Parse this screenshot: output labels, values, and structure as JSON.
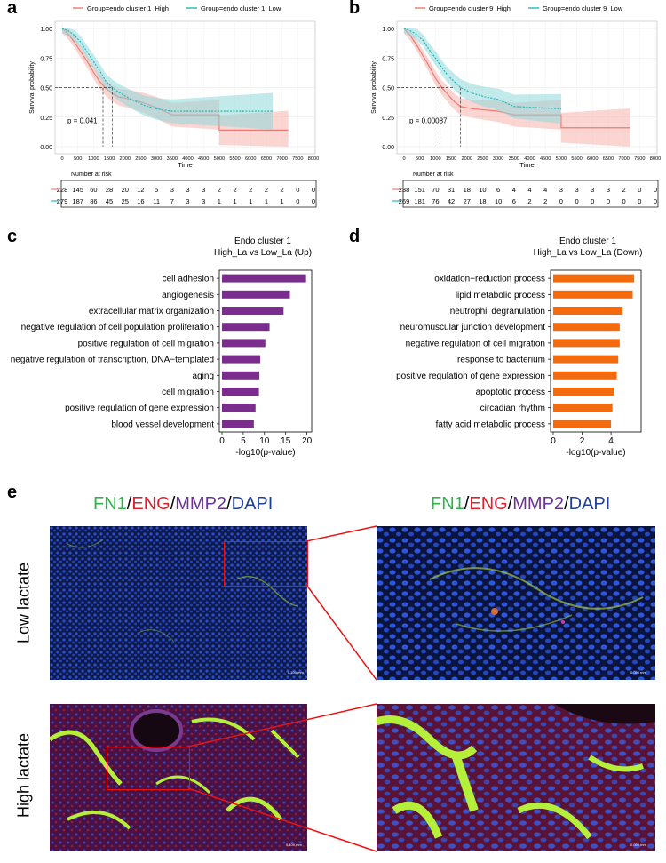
{
  "panels": {
    "a": "a",
    "b": "b",
    "c": "c",
    "d": "d",
    "e": "e"
  },
  "km": [
    {
      "id": "a",
      "legend": [
        {
          "label": "Group=endo cluster 1_High",
          "color": "#f07b72"
        },
        {
          "label": "Group=endo cluster 1_Low",
          "color": "#1fb8bb"
        }
      ],
      "ylabel": "Survival probability",
      "xlabel": "Time",
      "pvalue": "p = 0.041",
      "yticks": [
        "0.00",
        "0.25",
        "0.50",
        "0.75",
        "1.00"
      ],
      "xticks": [
        "0",
        "500",
        "1000",
        "1500",
        "2000",
        "2500",
        "3000",
        "3500",
        "4000",
        "4500",
        "5000",
        "5500",
        "6000",
        "6500",
        "7000",
        "7500",
        "8000"
      ],
      "risk_title": "Number at risk",
      "risk_rows": [
        [
          "228",
          "145",
          "60",
          "28",
          "20",
          "12",
          "5",
          "3",
          "3",
          "3",
          "2",
          "2",
          "2",
          "2",
          "2",
          "0",
          "0"
        ],
        [
          "279",
          "187",
          "86",
          "45",
          "25",
          "16",
          "11",
          "7",
          "3",
          "3",
          "1",
          "1",
          "1",
          "1",
          "1",
          "0",
          "0"
        ]
      ]
    },
    {
      "id": "b",
      "legend": [
        {
          "label": "Group=endo cluster 9_High",
          "color": "#f07b72"
        },
        {
          "label": "Group=endo cluster 9_Low",
          "color": "#1fb8bb"
        }
      ],
      "ylabel": "Survival probability",
      "xlabel": "Time",
      "pvalue": "p = 0.00087",
      "yticks": [
        "0.00",
        "0.25",
        "0.50",
        "0.75",
        "1.00"
      ],
      "xticks": [
        "0",
        "500",
        "1000",
        "1500",
        "2000",
        "2500",
        "3000",
        "3500",
        "4000",
        "4500",
        "5000",
        "5500",
        "6000",
        "6500",
        "7000",
        "7500",
        "8000"
      ],
      "risk_title": "Number at risk",
      "risk_rows": [
        [
          "238",
          "151",
          "70",
          "31",
          "18",
          "10",
          "6",
          "4",
          "4",
          "4",
          "3",
          "3",
          "3",
          "3",
          "2",
          "0",
          "0"
        ],
        [
          "269",
          "181",
          "76",
          "42",
          "27",
          "18",
          "10",
          "6",
          "2",
          "2",
          "0",
          "0",
          "0",
          "0",
          "0",
          "0",
          "0"
        ]
      ]
    }
  ],
  "chart_data": [
    {
      "type": "bar",
      "title": "Endo cluster 1",
      "subtitle": "High_La vs Low_La (Up)",
      "xlabel": "-log10(p-value)",
      "xlim": [
        0,
        20.5
      ],
      "xticks": [
        "0",
        "5",
        "10",
        "15",
        "20"
      ],
      "color": "#7b2d8e",
      "categories": [
        "cell adhesion",
        "angiogenesis",
        "extracellular matrix organization",
        "negative regulation of cell population proliferation",
        "positive regulation of cell migration",
        "negative regulation of transcription, DNA−templated",
        "aging",
        "cell migration",
        "positive regulation of gene expression",
        "blood vessel development"
      ],
      "values": [
        19.8,
        16.0,
        14.5,
        11.2,
        10.2,
        9.0,
        8.8,
        8.7,
        7.9,
        7.5
      ]
    },
    {
      "type": "bar",
      "title": "Endo cluster 1",
      "subtitle": "High_La vs Low_La (Down)",
      "xlabel": "-log10(p-value)",
      "xlim": [
        0,
        5.9
      ],
      "xticks": [
        "0",
        "2",
        "4"
      ],
      "color": "#f26b0f",
      "categories": [
        "oxidation−reduction process",
        "lipid metabolic process",
        "neutrophil degranulation",
        "neuromuscular junction development",
        "negative regulation of cell migration",
        "response to bacterium",
        "positive regulation of gene expression",
        "apoptotic process",
        "circadian rhythm",
        "fatty acid metabolic process"
      ],
      "values": [
        5.6,
        5.5,
        4.8,
        4.6,
        4.6,
        4.5,
        4.4,
        4.2,
        4.1,
        4.0
      ]
    }
  ],
  "stain": {
    "fn1": "FN1",
    "eng": "ENG",
    "mmp2": "MMP2",
    "dapi": "DAPI",
    "sep": "/",
    "colors": {
      "fn1": "#2db34a",
      "eng": "#e3202a",
      "mmp2": "#6a3296",
      "dapi": "#1f3f9c"
    },
    "rows": [
      "Low lactate",
      "High lactate"
    ]
  }
}
